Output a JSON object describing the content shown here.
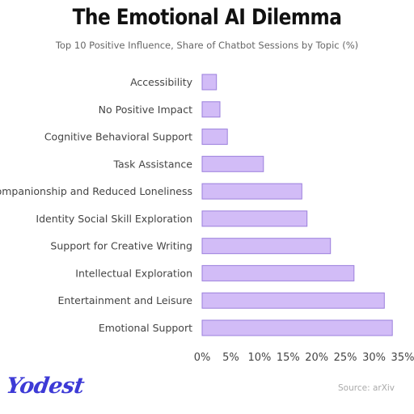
{
  "header": {
    "title": "The Emotional AI Dilemma",
    "subtitle": "Top 10 Positive Influence, Share of Chatbot Sessions by Topic (%)"
  },
  "footer": {
    "logo_text": "Yodest",
    "source": "Source: arXiv"
  },
  "colors": {
    "bar_fill": "#d2bcf7",
    "bar_stroke": "#9b7fdc",
    "label": "#444444",
    "logo": "#3d3ad6"
  },
  "chart_data": {
    "type": "bar",
    "orientation": "horizontal",
    "categories": [
      "Accessibility",
      "No Positive Impact",
      "Cognitive Behavioral Support",
      "Task Assistance",
      "Companionship and Reduced Loneliness",
      "Identity Social Skill Exploration",
      "Support for Creative Writing",
      "Intellectual Exploration",
      "Entertainment and Leisure",
      "Emotional Support"
    ],
    "values": [
      2.5,
      3.1,
      4.4,
      10.7,
      17.4,
      18.3,
      22.4,
      26.5,
      31.8,
      33.2
    ],
    "xlim": [
      0,
      35
    ],
    "xticks": [
      "0%",
      "5%",
      "10%",
      "15%",
      "20%",
      "25%",
      "30%",
      "35%"
    ],
    "xtick_values": [
      0,
      5,
      10,
      15,
      20,
      25,
      30,
      35
    ],
    "grid": false,
    "legend": "none"
  }
}
